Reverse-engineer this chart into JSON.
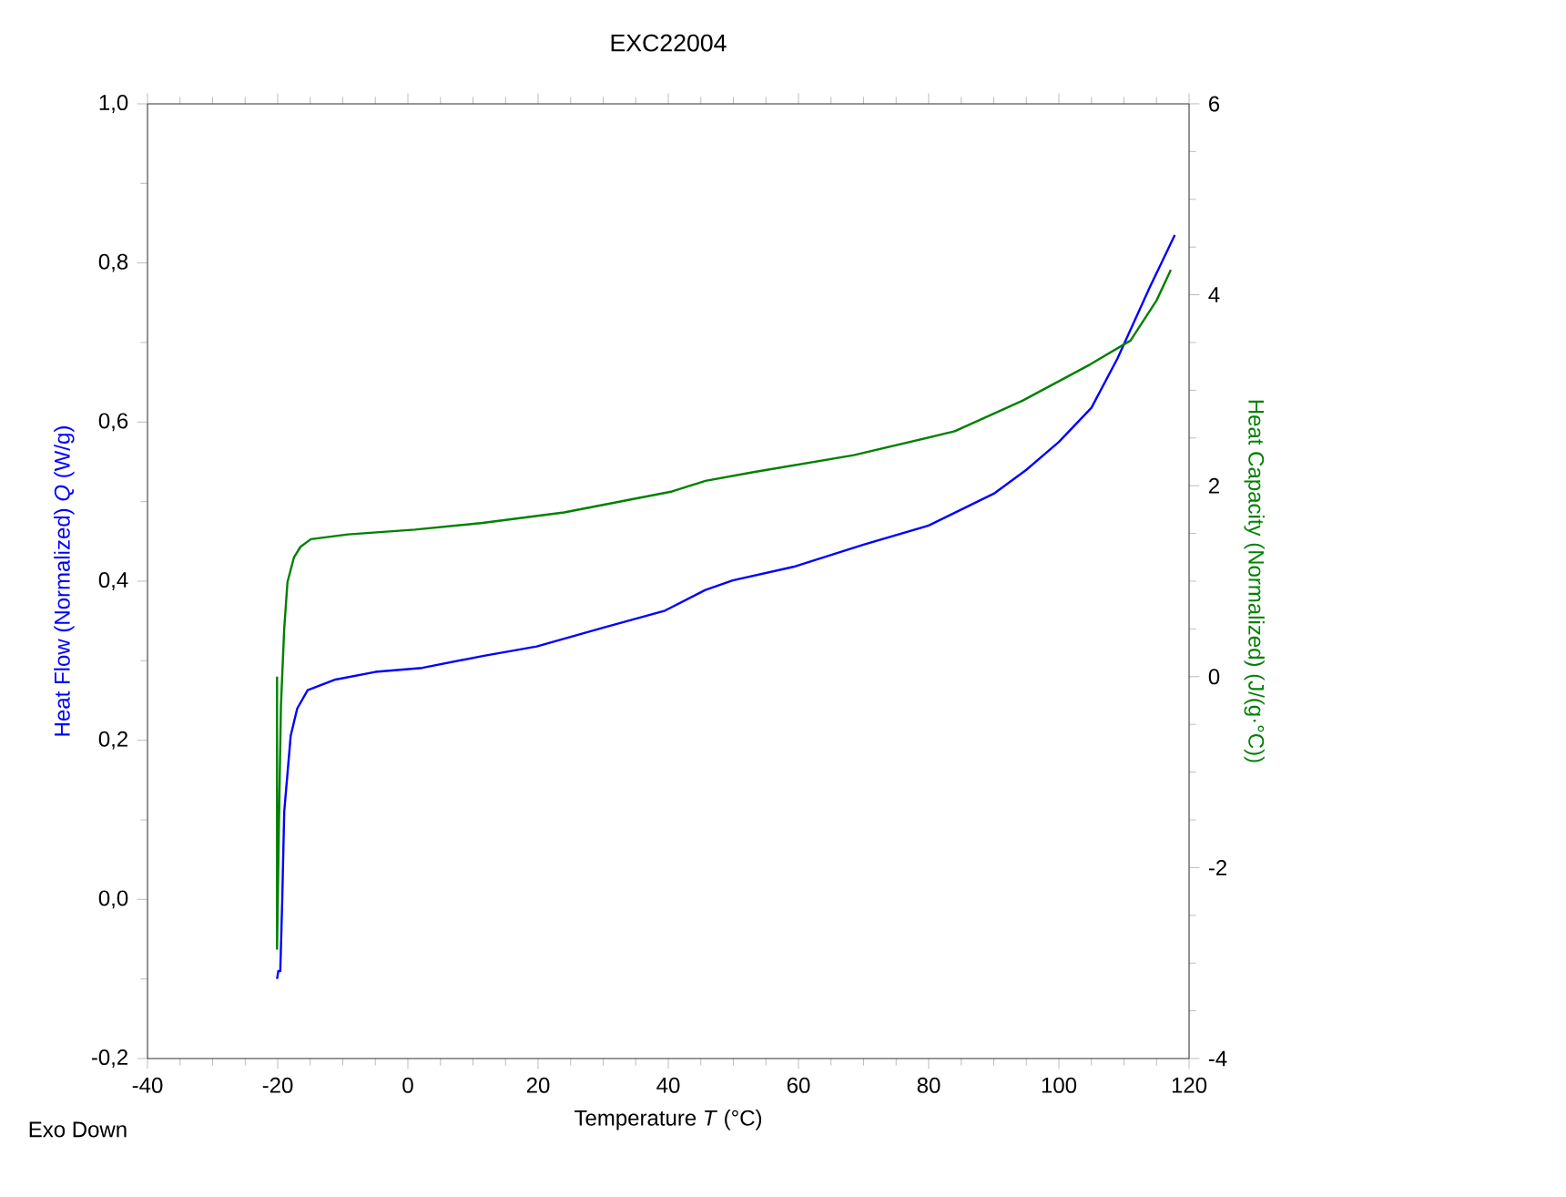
{
  "chart_data": {
    "type": "line",
    "title": "EXC22004",
    "xlabel": "Temperature *T* (°C)",
    "ylabel": "Heat Flow (Normalized) *Q* (W/g)",
    "y2label": "Heat Capacity (Normalized) (J/(g·°C))",
    "annotations": [
      "Exo Down"
    ],
    "xlim": [
      -40,
      120
    ],
    "xticks": [
      -40,
      -20,
      0,
      20,
      40,
      60,
      80,
      100,
      120
    ],
    "ylim": [
      -0.2,
      1.0
    ],
    "yticks": [
      {
        "value": -0.2,
        "label": "-0,2"
      },
      {
        "value": 0.0,
        "label": "0,0"
      },
      {
        "value": 0.2,
        "label": "0,2"
      },
      {
        "value": 0.4,
        "label": "0,4"
      },
      {
        "value": 0.6,
        "label": "0,6"
      },
      {
        "value": 0.8,
        "label": "0,8"
      },
      {
        "value": 1.0,
        "label": "1,0"
      }
    ],
    "y2lim": [
      -4,
      6
    ],
    "y2ticks": [
      -4,
      -2,
      0,
      2,
      4,
      6
    ],
    "grid": false,
    "marker": "none",
    "line_style": "solid",
    "series": [
      {
        "color": "#0000ff",
        "axis": "y",
        "x": [
          -20.1,
          -19.9,
          -19.6,
          -19.3,
          -19.0,
          -18.0,
          -17.0,
          -15.4,
          -11.3,
          -5.0,
          2.2,
          11.5,
          19.8,
          30.2,
          39.5,
          45.7,
          49.9,
          59.2,
          70,
          80,
          90,
          95,
          100,
          105,
          109,
          114,
          117.8
        ],
        "values": [
          -0.1,
          -0.09,
          -0.09,
          0.0,
          0.11,
          0.206,
          0.24,
          0.263,
          0.276,
          0.286,
          0.291,
          0.306,
          0.318,
          0.342,
          0.363,
          0.389,
          0.401,
          0.418,
          0.446,
          0.47,
          0.51,
          0.54,
          0.575,
          0.618,
          0.68,
          0.77,
          0.835
        ]
      },
      {
        "color": "#008000",
        "axis": "y2",
        "x": [
          -20.1,
          -20.1,
          -19.8,
          -19.5,
          -19.0,
          -18.5,
          -17.5,
          -16.5,
          -14.9,
          -9.2,
          1.1,
          11.5,
          24,
          40.6,
          45.7,
          52.9,
          68.5,
          84,
          94.4,
          104.8,
          111,
          115,
          117.2
        ],
        "values": [
          0.0,
          -2.85,
          -1.5,
          -0.3,
          0.5,
          0.99,
          1.25,
          1.36,
          1.44,
          1.49,
          1.54,
          1.61,
          1.72,
          1.94,
          2.05,
          2.14,
          2.32,
          2.57,
          2.89,
          3.27,
          3.52,
          3.94,
          4.26
        ]
      }
    ]
  }
}
